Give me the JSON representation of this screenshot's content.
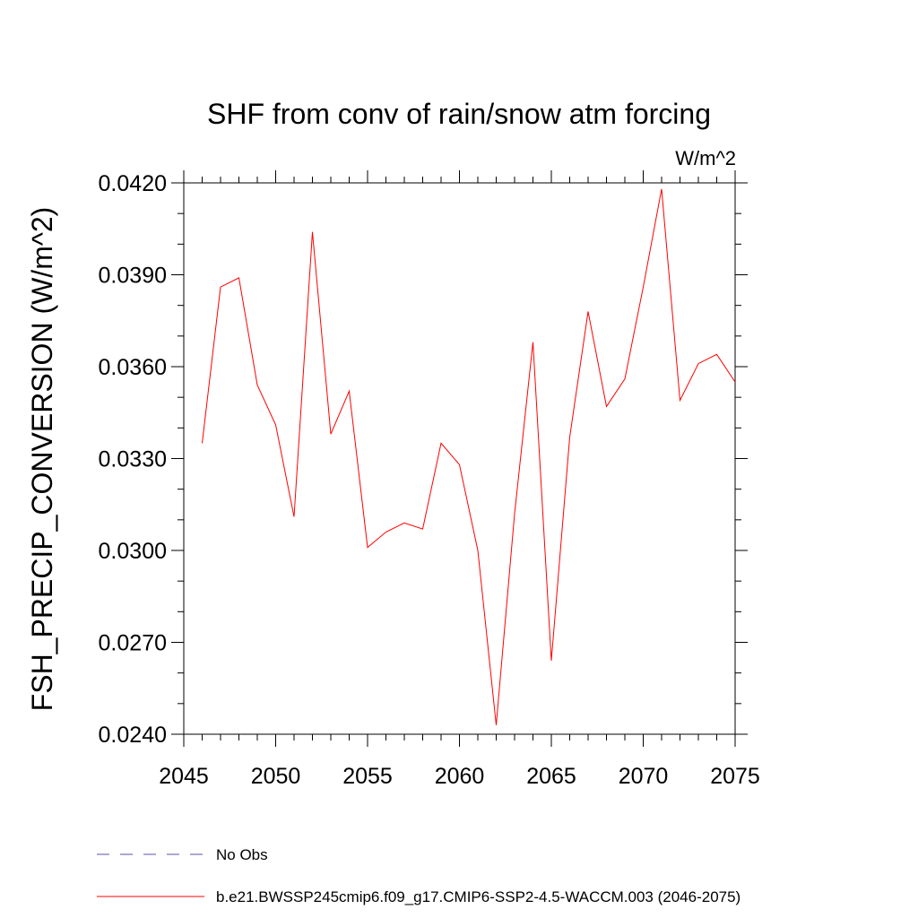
{
  "chart_data": {
    "type": "line",
    "title": "SHF from conv of rain/snow atm forcing",
    "units": "W/m^2",
    "ylabel": "FSH_PRECIP_CONVERSION  (W/m^2)",
    "xlabel": "",
    "xlim": [
      2045,
      2075
    ],
    "ylim": [
      0.024,
      0.042
    ],
    "x_ticks": [
      2045,
      2050,
      2055,
      2060,
      2065,
      2070,
      2075
    ],
    "x_tick_labels": [
      "2045",
      "2050",
      "2055",
      "2060",
      "2065",
      "2070",
      "2075"
    ],
    "y_ticks": [
      0.024,
      0.027,
      0.03,
      0.033,
      0.036,
      0.039,
      0.042
    ],
    "y_tick_labels": [
      "0.0240",
      "0.0270",
      "0.0300",
      "0.0330",
      "0.0360",
      "0.0390",
      "0.0420"
    ],
    "y_minor_step": 0.001,
    "x_minor_step": 1,
    "grid": false,
    "legend_position": "bottom",
    "series": [
      {
        "name": "b.e21.BWSSP245cmip6.f09_g17.CMIP6-SSP2-4.5-WACCM.003 (2046-2075)",
        "color": "#ff0000",
        "dash": "solid",
        "x": [
          2046,
          2047,
          2048,
          2049,
          2050,
          2051,
          2052,
          2053,
          2054,
          2055,
          2056,
          2057,
          2058,
          2059,
          2060,
          2061,
          2062,
          2063,
          2064,
          2065,
          2066,
          2067,
          2068,
          2069,
          2070,
          2071,
          2072,
          2073,
          2074,
          2075
        ],
        "values": [
          0.0335,
          0.0386,
          0.0389,
          0.0354,
          0.0341,
          0.0311,
          0.0404,
          0.0338,
          0.0352,
          0.0301,
          0.0306,
          0.0309,
          0.0307,
          0.0335,
          0.0328,
          0.03,
          0.0243,
          0.0312,
          0.0368,
          0.0264,
          0.0337,
          0.0378,
          0.0347,
          0.0356,
          0.0386,
          0.0418,
          0.0349,
          0.0361,
          0.0364,
          0.0355
        ]
      }
    ],
    "legend": [
      {
        "label": "No Obs",
        "color": "#5f4fa8",
        "dash": "dashed"
      },
      {
        "label": "b.e21.BWSSP245cmip6.f09_g17.CMIP6-SSP2-4.5-WACCM.003 (2046-2075)",
        "color": "#ff0000",
        "dash": "solid"
      }
    ]
  }
}
